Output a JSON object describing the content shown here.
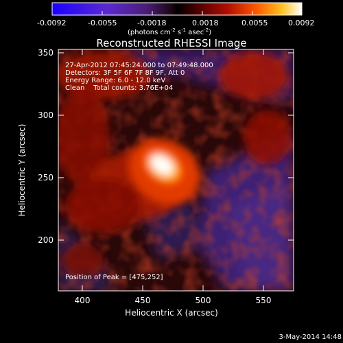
{
  "colorbar": {
    "ticks": [
      "-0.0092",
      "-0.0055",
      "-0.0018",
      "0.0018",
      "0.0055",
      "0.0092"
    ],
    "unit_prefix": "(photons cm",
    "unit_exp1": "-2",
    "unit_mid": " s",
    "unit_exp2": "-1",
    "unit_suffix": " asec",
    "unit_exp3": "-2",
    "unit_close": ")"
  },
  "title": "Reconstructed RHESSI Image",
  "info": {
    "time_range": "27-Apr-2012 07:45:24.000 to 07:49:48.000",
    "detectors": "Detectors: 3F 5F 6F 7F 8F 9F, Att 0",
    "energy": "Energy Range: 6.0 - 12.0 keV",
    "clean": "Clean    Total counts: 3.76E+04",
    "peak": "Position of Peak = [475,252]"
  },
  "axes": {
    "xlabel": "Heliocentric X (arcsec)",
    "ylabel": "Heliocentric Y (arcsec)",
    "xticks": [
      "400",
      "450",
      "500",
      "550"
    ],
    "yticks": [
      "200",
      "250",
      "300",
      "350"
    ]
  },
  "footer": {
    "date": "3-May-2014 14:48"
  },
  "image_data": {
    "x_range": [
      375,
      570
    ],
    "y_range": [
      155,
      355
    ],
    "peak": [
      475,
      252
    ],
    "colormap": [
      "#0000ff",
      "#3b1a8f",
      "#4a2070",
      "#000000",
      "#8a0000",
      "#e03000",
      "#ff8000",
      "#ffd000",
      "#ffffff"
    ]
  }
}
